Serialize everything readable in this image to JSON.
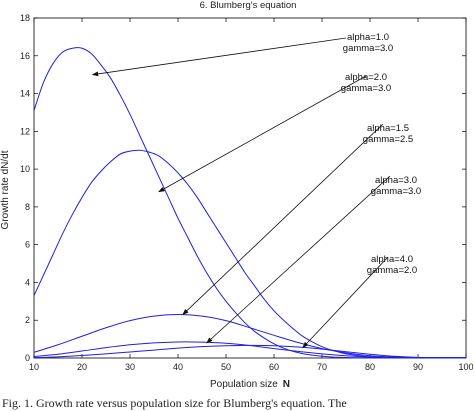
{
  "chart_data": {
    "type": "line",
    "title": "6. Blumberg's equation",
    "xlabel": "Population size",
    "xlabel_symbol": "N",
    "ylabel": "Growth rate  dN/dt",
    "xlim": [
      10,
      100
    ],
    "ylim": [
      0,
      18
    ],
    "xticks": [
      10,
      20,
      30,
      40,
      50,
      60,
      70,
      80,
      90,
      100
    ],
    "yticks": [
      0,
      2,
      4,
      6,
      8,
      10,
      12,
      14,
      16,
      18
    ],
    "line_color": "#2020e0",
    "series": [
      {
        "alpha": "1.0",
        "gamma": "3.0",
        "annotation": [
          "alpha=1.0",
          "gamma=3.0"
        ],
        "x": [
          10,
          12,
          14,
          16,
          18,
          20,
          22,
          24,
          26,
          28,
          30,
          32,
          34,
          36,
          38,
          40,
          42,
          44,
          46,
          48,
          50,
          52,
          54,
          56,
          58,
          60,
          62,
          64,
          66,
          68,
          70,
          72,
          74,
          76,
          78,
          80,
          82,
          84,
          86,
          88,
          90,
          92,
          94,
          96,
          98,
          100
        ],
        "y": [
          13.1,
          14.6,
          15.6,
          16.2,
          16.4,
          16.4,
          16.1,
          15.5,
          14.8,
          13.9,
          12.9,
          11.8,
          10.7,
          9.6,
          8.5,
          7.4,
          6.4,
          5.4,
          4.5,
          3.7,
          3.0,
          2.4,
          1.85,
          1.4,
          1.05,
          0.75,
          0.52,
          0.35,
          0.23,
          0.15,
          0.09,
          0.05,
          0.03,
          0.02,
          0.01,
          0.0,
          0.0,
          0.0,
          0.0,
          0.0,
          0.0,
          0.0,
          0.0,
          0.0,
          0.0,
          0.0
        ]
      },
      {
        "alpha": "2.0",
        "gamma": "3.0",
        "annotation": [
          "alpha=2.0",
          "gamma=3.0"
        ],
        "x": [
          10,
          12,
          14,
          16,
          18,
          20,
          22,
          24,
          26,
          28,
          30,
          32,
          34,
          36,
          38,
          40,
          42,
          44,
          46,
          48,
          50,
          52,
          54,
          56,
          58,
          60,
          62,
          64,
          66,
          68,
          70,
          72,
          74,
          76,
          78,
          80,
          82,
          84,
          86,
          88,
          90,
          92,
          94,
          96,
          98,
          100
        ],
        "y": [
          3.3,
          4.4,
          5.5,
          6.6,
          7.6,
          8.5,
          9.3,
          9.9,
          10.4,
          10.8,
          10.95,
          11.0,
          10.9,
          10.7,
          10.3,
          9.8,
          9.2,
          8.5,
          7.7,
          6.9,
          6.1,
          5.3,
          4.5,
          3.8,
          3.1,
          2.5,
          2.0,
          1.55,
          1.15,
          0.85,
          0.6,
          0.42,
          0.28,
          0.18,
          0.11,
          0.06,
          0.03,
          0.02,
          0.01,
          0.0,
          0.0,
          0.0,
          0.0,
          0.0,
          0.0,
          0.0
        ]
      },
      {
        "alpha": "1.5",
        "gamma": "2.5",
        "annotation": [
          "alpha=1.5",
          "gamma=2.5"
        ],
        "x": [
          10,
          15,
          20,
          25,
          30,
          35,
          40,
          45,
          50,
          55,
          60,
          65,
          70,
          75,
          80,
          85,
          90,
          95,
          100
        ],
        "y": [
          0.3,
          0.7,
          1.15,
          1.6,
          1.98,
          2.22,
          2.3,
          2.22,
          1.98,
          1.6,
          1.2,
          0.82,
          0.5,
          0.27,
          0.12,
          0.05,
          0.01,
          0.0,
          0.0
        ]
      },
      {
        "alpha": "3.0",
        "gamma": "3.0",
        "annotation": [
          "alpha=3.0",
          "gamma=3.0"
        ],
        "x": [
          10,
          15,
          20,
          25,
          30,
          35,
          40,
          45,
          50,
          55,
          60,
          65,
          70,
          75,
          80,
          85,
          90,
          95,
          100
        ],
        "y": [
          0.08,
          0.2,
          0.37,
          0.55,
          0.7,
          0.8,
          0.85,
          0.84,
          0.78,
          0.66,
          0.5,
          0.35,
          0.22,
          0.12,
          0.05,
          0.02,
          0.0,
          0.0,
          0.0
        ]
      },
      {
        "alpha": "4.0",
        "gamma": "2.0",
        "annotation": [
          "alpha=4.0",
          "gamma=2.0"
        ],
        "x": [
          10,
          15,
          20,
          25,
          30,
          35,
          40,
          45,
          50,
          55,
          60,
          65,
          70,
          75,
          80,
          85,
          90,
          95,
          100
        ],
        "y": [
          0.02,
          0.06,
          0.13,
          0.22,
          0.32,
          0.42,
          0.52,
          0.6,
          0.65,
          0.67,
          0.65,
          0.58,
          0.47,
          0.33,
          0.2,
          0.09,
          0.03,
          0.0,
          0.0
        ]
      }
    ],
    "annotations": [
      {
        "lines": [
          "alpha=1.0",
          "gamma=3.0"
        ],
        "series_index": 0,
        "arrow_to": [
          22.2,
          15.0
        ]
      },
      {
        "lines": [
          "alpha=2.0",
          "gamma=3.0"
        ],
        "series_index": 1,
        "arrow_to": [
          36.0,
          8.8
        ]
      },
      {
        "lines": [
          "alpha=1.5",
          "gamma=2.5"
        ],
        "series_index": 2,
        "arrow_to": [
          41.0,
          2.3
        ]
      },
      {
        "lines": [
          "alpha=3.0",
          "gamma=3.0"
        ],
        "series_index": 3,
        "arrow_to": [
          46.0,
          0.8
        ]
      },
      {
        "lines": [
          "alpha=4.0",
          "gamma=2.0"
        ],
        "series_index": 4,
        "arrow_to": [
          66.0,
          0.55
        ]
      }
    ]
  },
  "caption": "Fig. 1.  Growth rate versus population size for Blumberg's equation. The"
}
